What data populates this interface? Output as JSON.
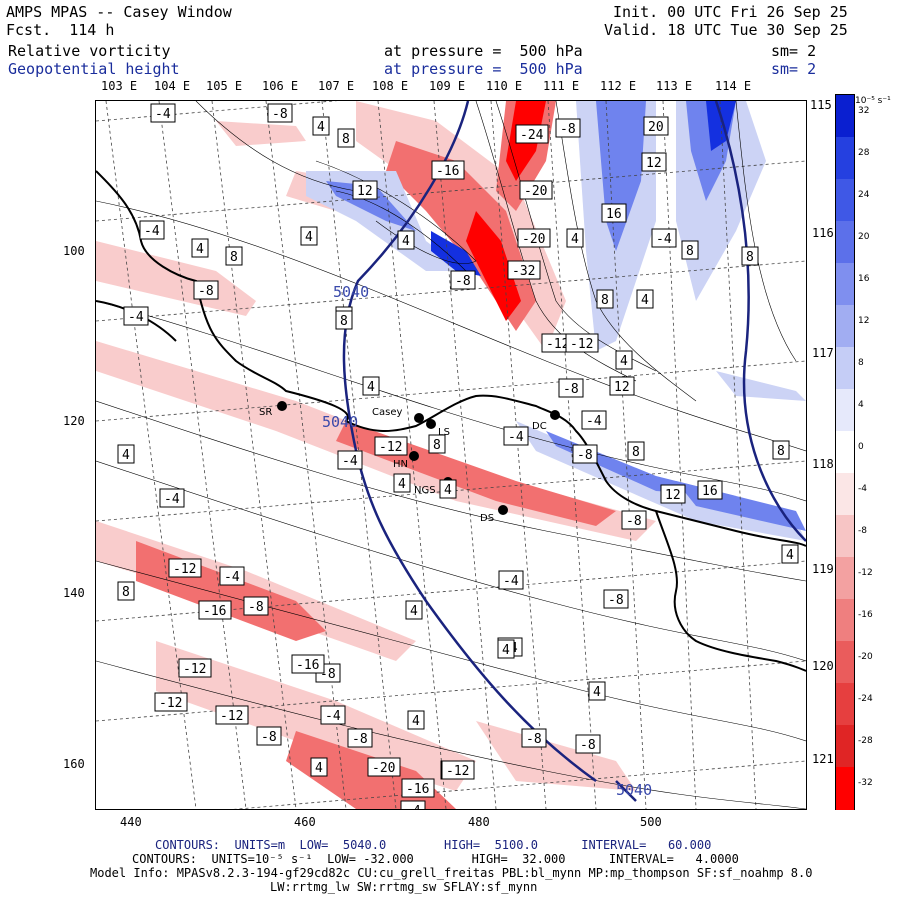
{
  "header": {
    "model_title": "AMPS MPAS -- Casey Window",
    "forecast": "Fcst.  114 h",
    "init": "Init. 00 UTC Fri 26 Sep 25",
    "valid": "Valid. 18 UTC Tue 30 Sep 25",
    "field1_name": "Relative vorticity",
    "field1_level": "at pressure =  500 hPa",
    "field1_sm": "sm= 2",
    "field2_name": "Geopotential height",
    "field2_level": "at pressure =  500 hPa",
    "field2_sm": "sm= 2"
  },
  "top_lon_labels": [
    "103 E",
    "104 E",
    "105 E",
    "106 E",
    "107 E",
    "108 E",
    "109 E",
    "110 E",
    "111 E",
    "112 E",
    "113 E",
    "114 E"
  ],
  "right_lon_labels": [
    "115 E",
    "116 E",
    "117 E",
    "118 E",
    "119 E",
    "120 E",
    "121 E"
  ],
  "left_axis": [
    "100",
    "120",
    "140",
    "160"
  ],
  "bottom_axis": [
    "440",
    "460",
    "480",
    "500"
  ],
  "stations": [
    {
      "name": "SR"
    },
    {
      "name": "Casey"
    },
    {
      "name": "LS"
    },
    {
      "name": "HN"
    },
    {
      "name": "NGS"
    },
    {
      "name": "DS"
    },
    {
      "name": "DC"
    }
  ],
  "height_labels": [
    "5040",
    "5040",
    "5040"
  ],
  "vort_labels": [
    "-4",
    "-8",
    "4",
    "8",
    "4",
    "12",
    "-16",
    "-24",
    "-8",
    "20",
    "12",
    "16",
    "-20",
    "-4",
    "4",
    "8",
    "-4",
    "4",
    "8",
    "8",
    "-8",
    "4",
    "-8",
    "-32",
    "-20",
    "4",
    "-4",
    "4",
    "-12",
    "8",
    "4",
    "8",
    "-12",
    "4",
    "8",
    "12",
    "-8",
    "-4",
    "4",
    "4",
    "-12",
    "-4",
    "8",
    "-8",
    "8",
    "12",
    "16",
    "4",
    "4",
    "-8",
    "-4",
    "-12",
    "-4",
    "-4",
    "-8",
    "8",
    "-16",
    "-8",
    "-4",
    "-8",
    "4",
    "-4",
    "4",
    "-12",
    "-16",
    "4",
    "-12",
    "-12",
    "-8",
    "-4",
    "4",
    "-8",
    "-8",
    "4",
    "-4",
    "-20",
    "-12",
    "-16",
    "-8",
    "-12"
  ],
  "colorbar": {
    "unit": "10⁻⁵ s⁻¹",
    "levels": [
      "32",
      "28",
      "24",
      "20",
      "16",
      "12",
      "8",
      "4",
      "0",
      "-4",
      "-8",
      "-12",
      "-16",
      "-20",
      "-24",
      "-28",
      "-32"
    ]
  },
  "footer": {
    "line1_prefix": "CONTOURS:",
    "line1": "UNITS=m  LOW=  5040.0        HIGH=  5100.0      INTERVAL=   60.000",
    "line2_prefix": "CONTOURS:",
    "line2": "UNITS=10⁻⁵ s⁻¹  LOW= -32.000        HIGH=  32.000      INTERVAL=   4.0000",
    "line3": "Model Info: MPASv8.2.3-194-gf29cd82c CU:cu_grell_freitas PBL:bl_mynn MP:mp_thompson SF:sf_noahmp 8.0",
    "line4": "LW:rrtmg_lw SW:rrtmg_sw SFLAY:sf_mynn"
  },
  "colors": {
    "height_contour": "#1a237e",
    "neg_strong": "#ff0000",
    "neg_mid": "#f27070",
    "neg_weak": "#f9cccc",
    "pos_strong": "#1430e0",
    "pos_mid": "#6f83ee",
    "pos_weak": "#ccd3f5"
  }
}
